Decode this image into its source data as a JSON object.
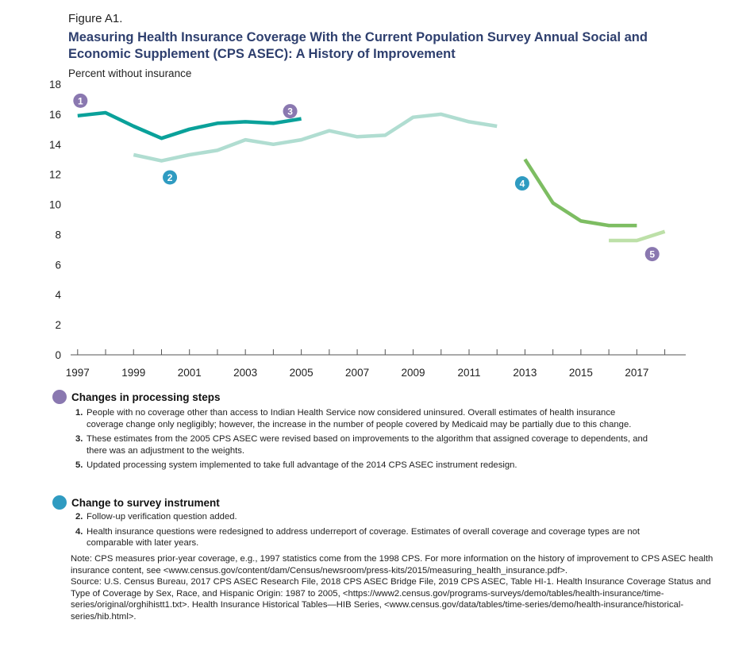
{
  "figure_label": "Figure A1.",
  "chart_data": {
    "type": "line",
    "title": "Measuring Health Insurance Coverage With the Current Population Survey Annual Social and Economic Supplement (CPS ASEC): A History of Improvement",
    "ylabel": "Percent without insurance",
    "xlabel": "",
    "ylim": [
      0,
      18
    ],
    "xlim": [
      1996.75,
      2018.75
    ],
    "y_ticks": [
      0,
      2,
      4,
      6,
      8,
      10,
      12,
      14,
      16,
      18
    ],
    "x_tick_labels": [
      "1997",
      "1999",
      "2001",
      "2003",
      "2005",
      "2007",
      "2009",
      "2011",
      "2013",
      "2015",
      "2017"
    ],
    "grid": false,
    "series": [
      {
        "color": "#0aa19a",
        "x": [
          1997,
          1998,
          1999,
          2000,
          2001,
          2002,
          2003,
          2004,
          2005
        ],
        "y": [
          15.9,
          16.1,
          15.2,
          14.4,
          15.0,
          15.4,
          15.5,
          15.4,
          15.7
        ]
      },
      {
        "color": "#b0ddd1",
        "x": [
          1999,
          2000,
          2001,
          2002,
          2003,
          2004,
          2005,
          2006,
          2007,
          2008,
          2009,
          2010,
          2011,
          2012
        ],
        "y": [
          13.3,
          12.9,
          13.3,
          13.6,
          14.3,
          14.0,
          14.3,
          14.9,
          14.5,
          14.6,
          15.8,
          16.0,
          15.5,
          15.2
        ]
      },
      {
        "color": "#7dbd62",
        "x": [
          2013,
          2014,
          2015,
          2016,
          2017
        ],
        "y": [
          13.0,
          10.1,
          8.9,
          8.6,
          8.6
        ]
      },
      {
        "color": "#bde0a8",
        "x": [
          2016,
          2017,
          2018
        ],
        "y": [
          7.6,
          7.6,
          8.2
        ]
      }
    ],
    "annotations": [
      {
        "label": "1",
        "type": "processing",
        "x": 1997.1,
        "y": 16.9
      },
      {
        "label": "2",
        "type": "instrument",
        "x": 2000.3,
        "y": 11.8
      },
      {
        "label": "3",
        "type": "processing",
        "x": 2004.6,
        "y": 16.2
      },
      {
        "label": "4",
        "type": "instrument",
        "x": 2012.9,
        "y": 11.4
      },
      {
        "label": "5",
        "type": "processing",
        "x": 2017.55,
        "y": 6.7
      }
    ]
  },
  "colors": {
    "processing": "#8a78b0",
    "instrument": "#2f9bc1",
    "title": "#2e3f6e"
  },
  "legend": {
    "processing": {
      "heading": "Changes in processing steps",
      "items": [
        {
          "num": "1.",
          "text": "People with no coverage other than access to Indian Health Service now considered uninsured. Overall estimates of health insurance coverage change only negligibly; however, the increase in the number of people covered by Medicaid may be partially due to this change."
        },
        {
          "num": "3.",
          "text": "These estimates from the 2005 CPS ASEC were revised based on improvements to the algorithm that assigned coverage to dependents, and there was an adjustment to the weights."
        },
        {
          "num": "5.",
          "text": "Updated processing system implemented to take full advantage of the 2014 CPS ASEC instrument redesign."
        }
      ]
    },
    "instrument": {
      "heading": "Change to survey instrument",
      "items": [
        {
          "num": "2.",
          "text": "Follow-up verification question added."
        },
        {
          "num": "4.",
          "text": "Health insurance questions were redesigned to address underreport of coverage. Estimates of overall coverage and coverage types are not comparable with later years."
        }
      ]
    }
  },
  "footer": {
    "note": "Note: CPS measures prior-year coverage, e.g., 1997 statistics come from the 1998 CPS. For more information on the history of improvement to CPS ASEC health insurance content, see <www.census.gov/content/dam/Census/newsroom/press-kits/2015/measuring_health_insurance.pdf>.",
    "source": "Source: U.S. Census Bureau, 2017 CPS ASEC Research File, 2018 CPS ASEC Bridge File, 2019 CPS ASEC, Table HI-1. Health Insurance Coverage Status and Type of Coverage by Sex, Race, and Hispanic Origin: 1987 to 2005, <https://www2.census.gov/programs-surveys/demo/tables/health-insurance/time-series/original/orghihistt1.txt>. Health Insurance Historical Tables—HIB Series, <www.census.gov/data/tables/time-series/demo/health-insurance/historical-series/hib.html>."
  }
}
